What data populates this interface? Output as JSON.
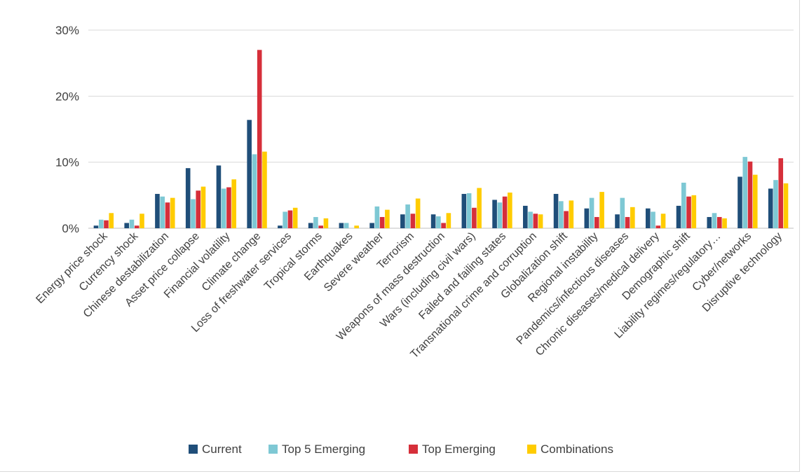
{
  "chart_data": {
    "type": "bar",
    "title": "",
    "xlabel": "",
    "ylabel": "",
    "ylim": [
      0,
      0.3
    ],
    "yticks": [
      0,
      0.1,
      0.2,
      0.3
    ],
    "ytick_labels": [
      "0%",
      "10%",
      "20%",
      "30%"
    ],
    "grid": true,
    "legend_position": "bottom",
    "categories": [
      "Energy price shock",
      "Currency shock",
      "Chinese destabilization",
      "Asset price collapse",
      "Financial volatility",
      "Climate change",
      "Loss of freshwater services",
      "Tropical storms",
      "Earthquakes",
      "Severe weather",
      "Terrorism",
      "Weapons of mass destruction",
      "Wars (including civil wars)",
      "Failed and failing states",
      "Transnational crime and corruption",
      "Globalization shift",
      "Regional instability",
      "Pandemics/infectious diseases",
      "Chronic diseases/medical delivery",
      "Demographic shift",
      "Liability regimes/regulatory…",
      "Cyber/networks",
      "Disruptive technology"
    ],
    "series": [
      {
        "name": "Current",
        "color": "#1f4e79",
        "values": [
          0.004,
          0.008,
          0.052,
          0.091,
          0.095,
          0.164,
          0.004,
          0.008,
          0.008,
          0.008,
          0.021,
          0.021,
          0.052,
          0.043,
          0.034,
          0.052,
          0.03,
          0.021,
          0.03,
          0.034,
          0.017,
          0.078,
          0.06
        ]
      },
      {
        "name": "Top 5 Emerging",
        "color": "#7ec8d4",
        "values": [
          0.013,
          0.013,
          0.048,
          0.044,
          0.06,
          0.112,
          0.025,
          0.017,
          0.008,
          0.033,
          0.036,
          0.018,
          0.053,
          0.039,
          0.025,
          0.041,
          0.046,
          0.046,
          0.025,
          0.069,
          0.023,
          0.108,
          0.073
        ]
      },
      {
        "name": "Top Emerging",
        "color": "#d62f3a",
        "values": [
          0.012,
          0.004,
          0.039,
          0.057,
          0.062,
          0.27,
          0.027,
          0.004,
          0.0,
          0.017,
          0.022,
          0.008,
          0.031,
          0.048,
          0.022,
          0.026,
          0.017,
          0.017,
          0.004,
          0.048,
          0.017,
          0.101,
          0.106
        ]
      },
      {
        "name": "Combinations",
        "color": "#ffcc00",
        "values": [
          0.023,
          0.022,
          0.046,
          0.063,
          0.074,
          0.116,
          0.031,
          0.015,
          0.004,
          0.028,
          0.045,
          0.023,
          0.061,
          0.054,
          0.021,
          0.042,
          0.055,
          0.032,
          0.022,
          0.05,
          0.015,
          0.081,
          0.068
        ]
      }
    ]
  }
}
